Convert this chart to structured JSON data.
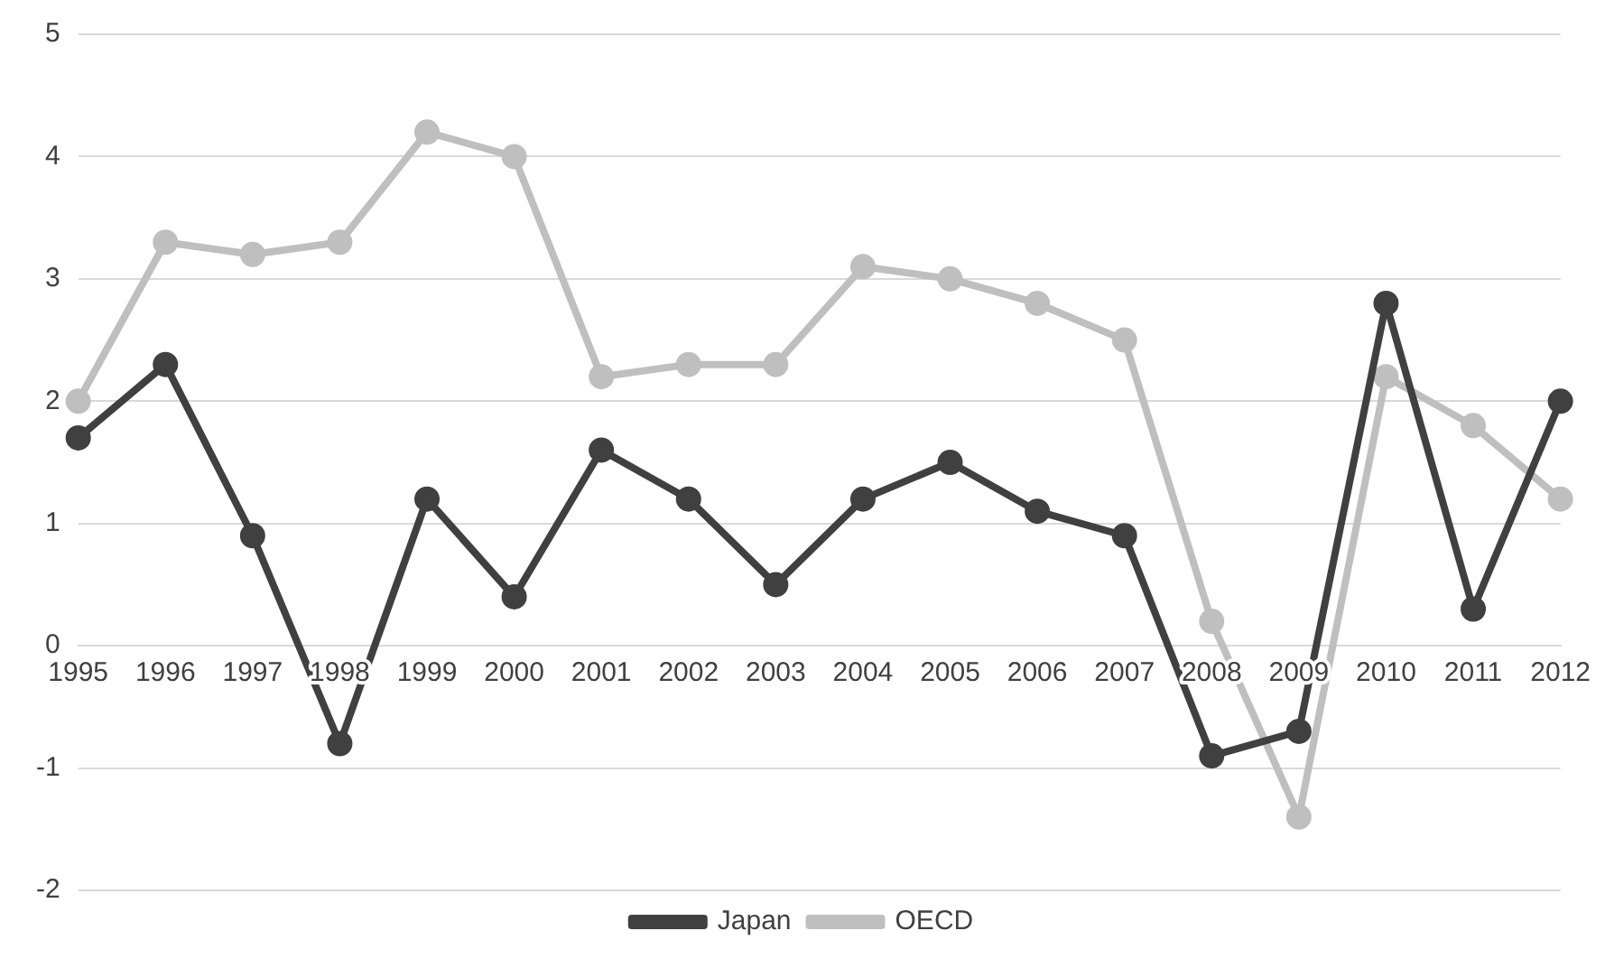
{
  "chart_data": {
    "type": "line",
    "categories": [
      "1995",
      "1996",
      "1997",
      "1998",
      "1999",
      "2000",
      "2001",
      "2002",
      "2003",
      "2004",
      "2005",
      "2006",
      "2007",
      "2008",
      "2009",
      "2010",
      "2011",
      "2012"
    ],
    "series": [
      {
        "name": "Japan",
        "color": "#404040",
        "values": [
          1.7,
          2.3,
          0.9,
          -0.8,
          1.2,
          0.4,
          1.6,
          1.2,
          0.5,
          1.2,
          1.5,
          1.1,
          0.9,
          -0.9,
          -0.7,
          2.8,
          0.3,
          2.0
        ]
      },
      {
        "name": "OECD",
        "color": "#bfbfbf",
        "values": [
          2.0,
          3.3,
          3.2,
          3.3,
          4.2,
          4.0,
          2.2,
          2.3,
          2.3,
          3.1,
          3.0,
          2.8,
          2.5,
          0.2,
          -1.4,
          2.2,
          1.8,
          1.2
        ]
      }
    ],
    "ylim": [
      -2,
      5
    ],
    "yticks": [
      -2,
      -1,
      0,
      1,
      2,
      3,
      4,
      5
    ],
    "grid": "y",
    "legend": "bottom",
    "marker": "circle",
    "line_style": "solid"
  }
}
